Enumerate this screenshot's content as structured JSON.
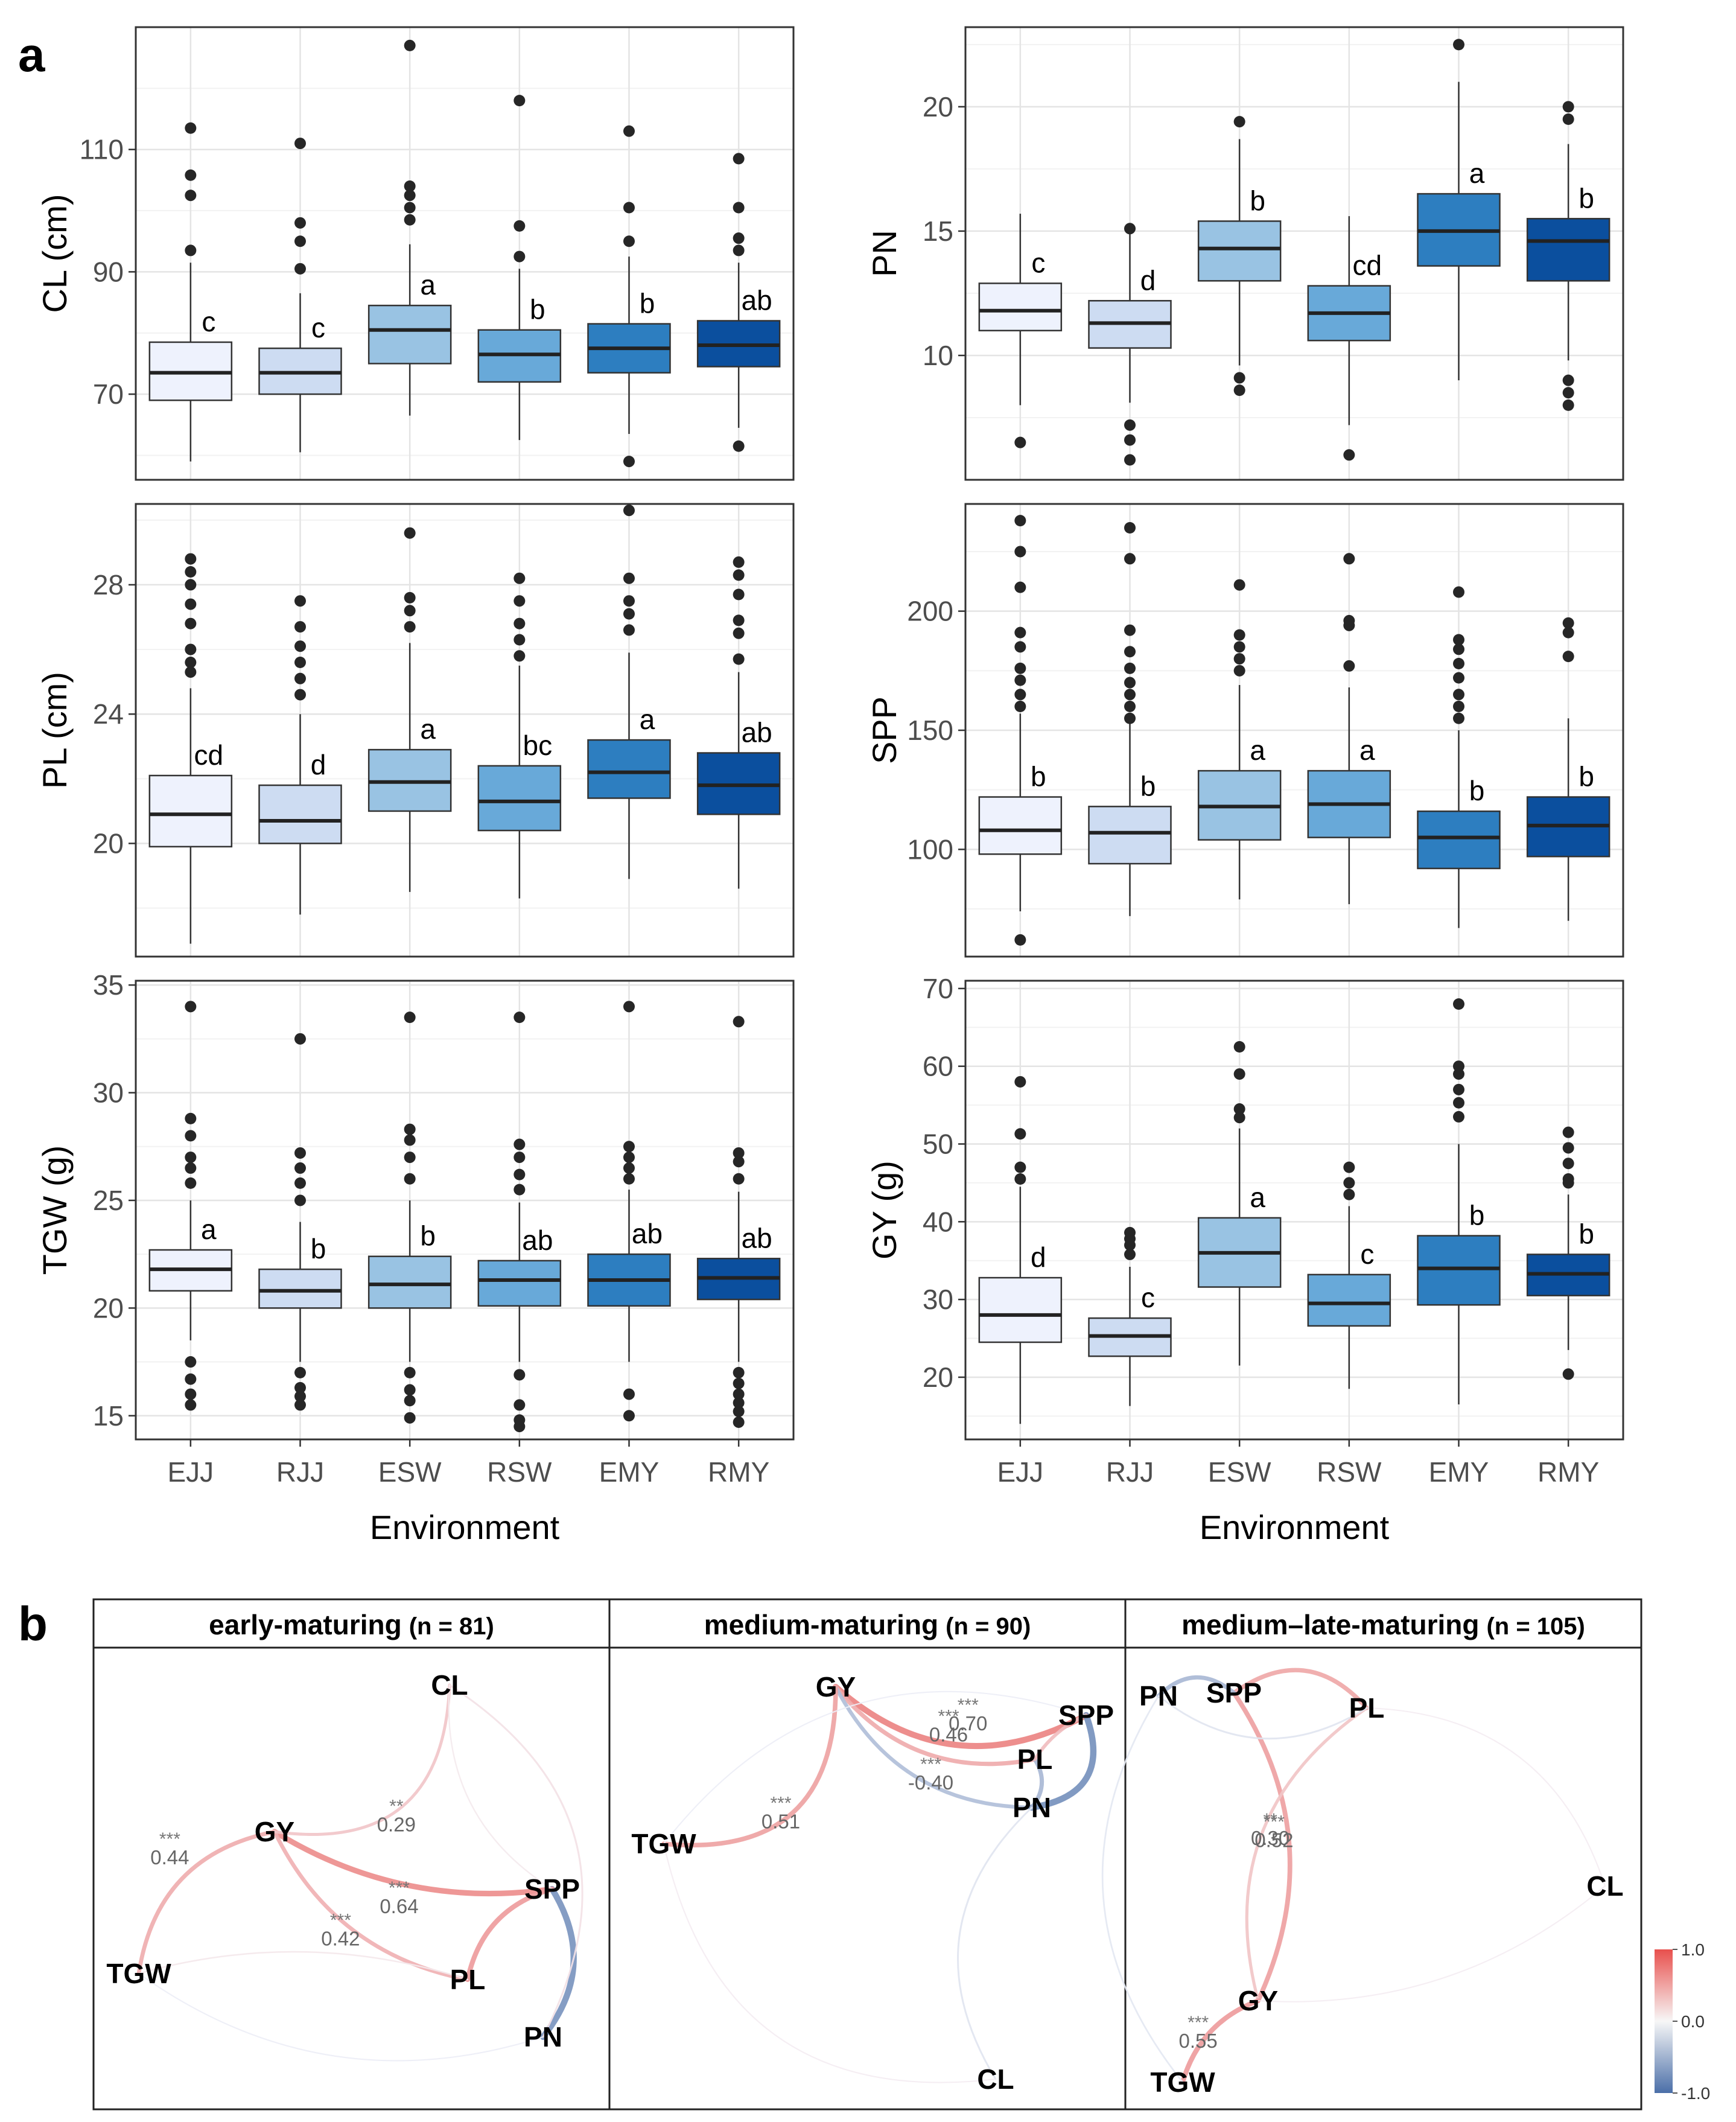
{
  "figure_labels": {
    "a": "a",
    "b": "b"
  },
  "colors": {
    "box_fills": [
      "#eef2fd",
      "#cddcf2",
      "#99c3e3",
      "#68a9d9",
      "#2d7ec0",
      "#0b4f9e"
    ],
    "positive": "#e8504d",
    "negative": "#4b6fa8"
  },
  "chart_data": [
    {
      "type": "box",
      "id": "CL",
      "ylabel": "CL (cm)",
      "xlabel": "Environment",
      "categories": [
        "EJJ",
        "RJJ",
        "ESW",
        "RSW",
        "EMY",
        "RMY"
      ],
      "ylim": [
        56,
        130
      ],
      "yticks": [
        70,
        90,
        110
      ],
      "boxes": [
        {
          "low": 59,
          "q1": 69,
          "median": 73.5,
          "q3": 78.5,
          "high": 91.5,
          "outliers": [
            93.5,
            102.5,
            105.8,
            113.5
          ],
          "letter": "c"
        },
        {
          "low": 60.5,
          "q1": 70,
          "median": 73.5,
          "q3": 77.5,
          "high": 86.5,
          "outliers": [
            90.5,
            95,
            98,
            111
          ],
          "letter": "c"
        },
        {
          "low": 66.5,
          "q1": 75,
          "median": 80.5,
          "q3": 84.5,
          "high": 94.5,
          "outliers": [
            98.5,
            100.5,
            102.5,
            104,
            127
          ],
          "letter": "a"
        },
        {
          "low": 62.5,
          "q1": 72,
          "median": 76.5,
          "q3": 80.5,
          "high": 90.5,
          "outliers": [
            92.5,
            97.5,
            118
          ],
          "letter": "b"
        },
        {
          "low": 63.5,
          "q1": 73.5,
          "median": 77.5,
          "q3": 81.5,
          "high": 92.5,
          "outliers": [
            59,
            95,
            100.5,
            113
          ],
          "letter": "b"
        },
        {
          "low": 64.5,
          "q1": 74.5,
          "median": 78,
          "q3": 82,
          "high": 91.5,
          "outliers": [
            61.5,
            93.5,
            95.5,
            100.5,
            108.5
          ],
          "letter": "ab"
        }
      ]
    },
    {
      "type": "box",
      "id": "PN",
      "ylabel": "PN",
      "xlabel": "Environment",
      "categories": [
        "EJJ",
        "RJJ",
        "ESW",
        "RSW",
        "EMY",
        "RMY"
      ],
      "ylim": [
        5,
        23.2
      ],
      "yticks": [
        10,
        15,
        20
      ],
      "boxes": [
        {
          "low": 8,
          "q1": 11,
          "median": 11.8,
          "q3": 12.9,
          "high": 15.7,
          "outliers": [
            6.5
          ],
          "letter": "c"
        },
        {
          "low": 8.1,
          "q1": 10.3,
          "median": 11.3,
          "q3": 12.2,
          "high": 14.9,
          "outliers": [
            5.8,
            6.6,
            7.2,
            15.1
          ],
          "letter": "d"
        },
        {
          "low": 9.6,
          "q1": 13,
          "median": 14.3,
          "q3": 15.4,
          "high": 18.7,
          "outliers": [
            8.6,
            9.1,
            19.4
          ],
          "letter": "b"
        },
        {
          "low": 7.2,
          "q1": 10.6,
          "median": 11.7,
          "q3": 12.8,
          "high": 15.6,
          "outliers": [
            6
          ],
          "letter": "cd"
        },
        {
          "low": 9,
          "q1": 13.6,
          "median": 15,
          "q3": 16.5,
          "high": 21,
          "outliers": [
            22.5
          ],
          "letter": "a"
        },
        {
          "low": 9.8,
          "q1": 13,
          "median": 14.6,
          "q3": 15.5,
          "high": 18.5,
          "outliers": [
            8,
            8.5,
            9,
            19.5,
            20
          ],
          "letter": "b"
        }
      ]
    },
    {
      "type": "box",
      "id": "PL",
      "ylabel": "PL (cm)",
      "xlabel": "Environment",
      "categories": [
        "EJJ",
        "RJJ",
        "ESW",
        "RSW",
        "EMY",
        "RMY"
      ],
      "ylim": [
        16.5,
        30.5
      ],
      "yticks": [
        20,
        24,
        28
      ],
      "boxes": [
        {
          "low": 16.9,
          "q1": 19.9,
          "median": 20.9,
          "q3": 22.1,
          "high": 24.8,
          "outliers": [
            25.3,
            25.6,
            26,
            26.8,
            27.4,
            28,
            28.4,
            28.8
          ],
          "letter": "cd"
        },
        {
          "low": 17.8,
          "q1": 20,
          "median": 20.7,
          "q3": 21.8,
          "high": 24,
          "outliers": [
            24.6,
            25.1,
            25.6,
            26.1,
            26.7,
            27.5
          ],
          "letter": "d"
        },
        {
          "low": 18.5,
          "q1": 21,
          "median": 21.9,
          "q3": 22.9,
          "high": 26.2,
          "outliers": [
            26.7,
            27.2,
            27.6,
            29.6
          ],
          "letter": "a"
        },
        {
          "low": 18.3,
          "q1": 20.4,
          "median": 21.3,
          "q3": 22.4,
          "high": 25.5,
          "outliers": [
            25.8,
            26.3,
            26.8,
            27.5,
            28.2
          ],
          "letter": "bc"
        },
        {
          "low": 18.9,
          "q1": 21.4,
          "median": 22.2,
          "q3": 23.2,
          "high": 25.9,
          "outliers": [
            26.6,
            27.1,
            27.5,
            28.2,
            30.3
          ],
          "letter": "a"
        },
        {
          "low": 18.6,
          "q1": 20.9,
          "median": 21.8,
          "q3": 22.8,
          "high": 25.3,
          "outliers": [
            25.7,
            26.5,
            26.9,
            27.7,
            28.3,
            28.7
          ],
          "letter": "ab"
        }
      ]
    },
    {
      "type": "box",
      "id": "SPP",
      "ylabel": "SPP",
      "xlabel": "Environment",
      "categories": [
        "EJJ",
        "RJJ",
        "ESW",
        "RSW",
        "EMY",
        "RMY"
      ],
      "ylim": [
        55,
        245
      ],
      "yticks": [
        100,
        150,
        200
      ],
      "boxes": [
        {
          "low": 74,
          "q1": 98,
          "median": 108,
          "q3": 122,
          "high": 157,
          "outliers": [
            62,
            160,
            165,
            171,
            176,
            185,
            191,
            210,
            225,
            238
          ],
          "letter": "b"
        },
        {
          "low": 72,
          "q1": 94,
          "median": 107,
          "q3": 118,
          "high": 153,
          "outliers": [
            155,
            160,
            165,
            170,
            176,
            183,
            192,
            222,
            235
          ],
          "letter": "b"
        },
        {
          "low": 79,
          "q1": 104,
          "median": 118,
          "q3": 133,
          "high": 169,
          "outliers": [
            175,
            180,
            185,
            190,
            211
          ],
          "letter": "a"
        },
        {
          "low": 77,
          "q1": 105,
          "median": 119,
          "q3": 133,
          "high": 168,
          "outliers": [
            177,
            194,
            196,
            222
          ],
          "letter": "a"
        },
        {
          "low": 67,
          "q1": 92,
          "median": 105,
          "q3": 116,
          "high": 150,
          "outliers": [
            155,
            160,
            165,
            172,
            178,
            184,
            188,
            208
          ],
          "letter": "b"
        },
        {
          "low": 70,
          "q1": 97,
          "median": 110,
          "q3": 122,
          "high": 155,
          "outliers": [
            181,
            191,
            195
          ],
          "letter": "b"
        }
      ]
    },
    {
      "type": "box",
      "id": "TGW",
      "ylabel": "TGW (g)",
      "xlabel": "Environment",
      "categories": [
        "EJJ",
        "RJJ",
        "ESW",
        "RSW",
        "EMY",
        "RMY"
      ],
      "ylim": [
        13.9,
        35.2
      ],
      "yticks": [
        15,
        20,
        25,
        30,
        35
      ],
      "boxes": [
        {
          "low": 18.5,
          "q1": 20.8,
          "median": 21.8,
          "q3": 22.7,
          "high": 25,
          "outliers": [
            15.5,
            16,
            16.7,
            17.5,
            25.8,
            26.5,
            27,
            28,
            28.8,
            34
          ],
          "letter": "a"
        },
        {
          "low": 17.5,
          "q1": 20,
          "median": 20.8,
          "q3": 21.8,
          "high": 24,
          "outliers": [
            15.5,
            15.9,
            16.3,
            17,
            25,
            25.8,
            26.5,
            27.2,
            32.5
          ],
          "letter": "b"
        },
        {
          "low": 17.5,
          "q1": 20,
          "median": 21.1,
          "q3": 22.4,
          "high": 25,
          "outliers": [
            14.9,
            15.7,
            16.2,
            17,
            26,
            27,
            27.8,
            28.3,
            33.5
          ],
          "letter": "b"
        },
        {
          "low": 17.5,
          "q1": 20.1,
          "median": 21.3,
          "q3": 22.2,
          "high": 24.9,
          "outliers": [
            14.5,
            14.8,
            15.5,
            16.9,
            25.5,
            26.2,
            27,
            27.6,
            33.5
          ],
          "letter": "ab"
        },
        {
          "low": 17.5,
          "q1": 20.1,
          "median": 21.3,
          "q3": 22.5,
          "high": 25.5,
          "outliers": [
            15,
            16,
            26,
            26.5,
            27,
            27.5,
            34
          ],
          "letter": "ab"
        },
        {
          "low": 17.5,
          "q1": 20.4,
          "median": 21.4,
          "q3": 22.3,
          "high": 25.4,
          "outliers": [
            14.7,
            15.2,
            15.6,
            16,
            16.5,
            17,
            26,
            26.8,
            27.2,
            33.3
          ],
          "letter": "ab"
        }
      ]
    },
    {
      "type": "box",
      "id": "GY",
      "ylabel": "GY (g)",
      "xlabel": "Environment",
      "categories": [
        "EJJ",
        "RJJ",
        "ESW",
        "RSW",
        "EMY",
        "RMY"
      ],
      "ylim": [
        12,
        71
      ],
      "yticks": [
        20,
        30,
        40,
        50,
        60,
        70
      ],
      "boxes": [
        {
          "low": 14,
          "q1": 24.5,
          "median": 28,
          "q3": 32.8,
          "high": 44.5,
          "outliers": [
            45.5,
            47,
            51.3,
            58
          ],
          "letter": "d"
        },
        {
          "low": 16.3,
          "q1": 22.7,
          "median": 25.3,
          "q3": 27.6,
          "high": 34.2,
          "outliers": [
            35.8,
            37,
            37.8,
            38.6
          ],
          "letter": "c"
        },
        {
          "low": 21.5,
          "q1": 31.6,
          "median": 36,
          "q3": 40.5,
          "high": 52,
          "outliers": [
            53.4,
            54.5,
            59,
            62.5
          ],
          "letter": "a"
        },
        {
          "low": 18.5,
          "q1": 26.6,
          "median": 29.5,
          "q3": 33.2,
          "high": 42,
          "outliers": [
            43.5,
            45,
            47
          ],
          "letter": "c"
        },
        {
          "low": 16.5,
          "q1": 29.3,
          "median": 34,
          "q3": 38.2,
          "high": 50,
          "outliers": [
            53.5,
            55.3,
            57,
            59,
            60,
            68
          ],
          "letter": "b"
        },
        {
          "low": 23.5,
          "q1": 30.5,
          "median": 33.3,
          "q3": 35.8,
          "high": 43.5,
          "outliers": [
            20.4,
            45,
            45.5,
            47.5,
            49.5,
            51.5
          ],
          "letter": "b"
        }
      ]
    },
    {
      "type": "network",
      "id": "early",
      "title": "early-maturing",
      "n_label": "(n = 81)",
      "nodes": [
        "CL",
        "GY",
        "TGW",
        "SPP",
        "PL",
        "PN"
      ],
      "edges": [
        {
          "from": "GY",
          "to": "SPP",
          "r": 0.64,
          "sig": "***"
        },
        {
          "from": "GY",
          "to": "PL",
          "r": 0.42,
          "sig": "***"
        },
        {
          "from": "GY",
          "to": "TGW",
          "r": 0.44,
          "sig": "***"
        },
        {
          "from": "GY",
          "to": "CL",
          "r": 0.29,
          "sig": "**"
        },
        {
          "from": "SPP",
          "to": "PN",
          "r": -0.72,
          "sig": ""
        },
        {
          "from": "SPP",
          "to": "PL",
          "r": 0.55,
          "sig": ""
        },
        {
          "from": "CL",
          "to": "PN",
          "r": 0.12,
          "sig": ""
        },
        {
          "from": "TGW",
          "to": "PN",
          "r": -0.05,
          "sig": ""
        },
        {
          "from": "TGW",
          "to": "PL",
          "r": 0.08,
          "sig": ""
        },
        {
          "from": "CL",
          "to": "SPP",
          "r": 0.07,
          "sig": ""
        }
      ]
    },
    {
      "type": "network",
      "id": "medium",
      "title": "medium-maturing",
      "n_label": "(n = 90)",
      "nodes": [
        "GY",
        "SPP",
        "PL",
        "PN",
        "TGW",
        "CL"
      ],
      "edges": [
        {
          "from": "GY",
          "to": "SPP",
          "r": 0.7,
          "sig": "***"
        },
        {
          "from": "GY",
          "to": "PL",
          "r": 0.46,
          "sig": "***"
        },
        {
          "from": "GY",
          "to": "PN",
          "r": -0.4,
          "sig": "***"
        },
        {
          "from": "GY",
          "to": "TGW",
          "r": 0.51,
          "sig": "***"
        },
        {
          "from": "SPP",
          "to": "PN",
          "r": -0.75,
          "sig": ""
        },
        {
          "from": "PL",
          "to": "PN",
          "r": -0.45,
          "sig": ""
        },
        {
          "from": "SPP",
          "to": "PL",
          "r": 0.35,
          "sig": ""
        },
        {
          "from": "PN",
          "to": "CL",
          "r": -0.12,
          "sig": ""
        },
        {
          "from": "TGW",
          "to": "SPP",
          "r": -0.05,
          "sig": ""
        },
        {
          "from": "TGW",
          "to": "CL",
          "r": 0.05,
          "sig": ""
        }
      ]
    },
    {
      "type": "network",
      "id": "late",
      "title": "medium–late-maturing",
      "n_label": "(n = 105)",
      "nodes": [
        "PN",
        "SPP",
        "PL",
        "CL",
        "GY",
        "TGW"
      ],
      "edges": [
        {
          "from": "SPP",
          "to": "GY",
          "r": 0.52,
          "sig": "***"
        },
        {
          "from": "PL",
          "to": "GY",
          "r": 0.3,
          "sig": "**"
        },
        {
          "from": "GY",
          "to": "TGW",
          "r": 0.55,
          "sig": "***"
        },
        {
          "from": "SPP",
          "to": "PL",
          "r": 0.48,
          "sig": ""
        },
        {
          "from": "PN",
          "to": "SPP",
          "r": -0.45,
          "sig": ""
        },
        {
          "from": "PN",
          "to": "PL",
          "r": -0.12,
          "sig": ""
        },
        {
          "from": "PN",
          "to": "TGW",
          "r": -0.1,
          "sig": ""
        },
        {
          "from": "CL",
          "to": "PL",
          "r": 0.05,
          "sig": ""
        },
        {
          "from": "CL",
          "to": "GY",
          "r": 0.05,
          "sig": ""
        }
      ]
    }
  ],
  "legend": {
    "ticks": [
      "1.0",
      "0.0",
      "-1.0"
    ]
  }
}
